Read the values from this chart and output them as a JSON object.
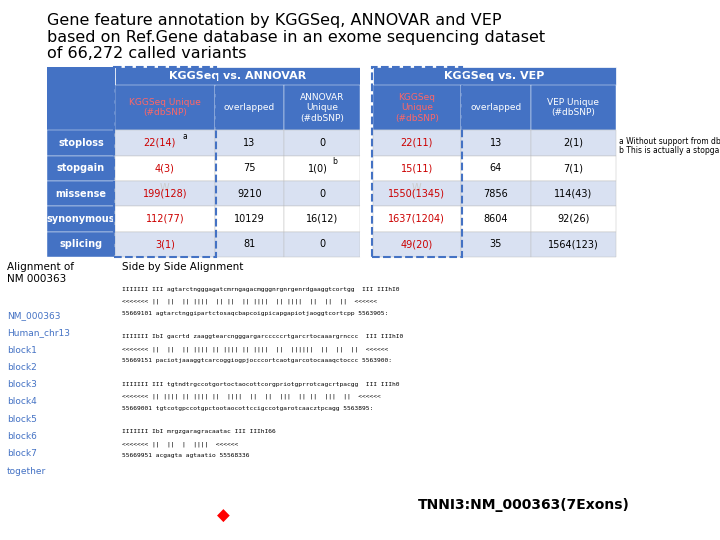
{
  "title_line1": "Gene feature annotation by KGGSeq, ANNOVAR and VEP",
  "title_line2": "based on Ref.Gene database in an exome sequencing dataset",
  "title_line3": "of 66,272 called variants",
  "title_fontsize": 11.5,
  "table": {
    "row_labels": [
      "stoploss",
      "stopgain",
      "missense",
      "synonymous",
      "splicing"
    ],
    "col_group1_header": "KGGSeq vs. ANNOVAR",
    "col_group2_header": "KGGSeq vs. VEP",
    "col_headers": [
      "KGGSeq Unique\n(#dbSNP)",
      "overlapped",
      "ANNOVAR\nUnique\n(#dbSNP)",
      "KGGSeq\nUnique\n(#dbSNP)",
      "overlapped",
      "VEP Unique\n(#dbSNP)"
    ],
    "data": [
      [
        "22(14)",
        "13",
        "0",
        "22(11)",
        "13",
        "2(1)"
      ],
      [
        "4(3)",
        "75",
        "1(0)",
        "15(11)",
        "64",
        "7(1)"
      ],
      [
        "199(128)",
        "9210",
        "0",
        "1550(1345)",
        "7856",
        "114(43)"
      ],
      [
        "112(77)",
        "10129",
        "16(12)",
        "1637(1204)",
        "8604",
        "92(26)"
      ],
      [
        "3(1)",
        "81",
        "0",
        "49(20)",
        "35",
        "1564(123)"
      ]
    ],
    "superscript_a_row": 0,
    "superscript_b_row": 1,
    "vv_row": 2,
    "header_bg": "#4472C4",
    "header_fg": "#FFFFFF",
    "cell_bg_even": "#D9E1F2",
    "cell_bg_odd": "#FFFFFF",
    "red_color": "#CC0000",
    "footnote_a": "a Without support from dbSNP",
    "footnote_b": "b This is actually a stopgain",
    "bottom_text": "TNNI3:NM_000363(7Exons)",
    "side_label1": "Side by Side Alignment",
    "align_label": "Alignment of\nNM 000363",
    "left_links": [
      "NM_000363",
      "Human_chr13",
      "block1",
      "block2",
      "block3",
      "block4",
      "block5",
      "block6",
      "block7",
      "together"
    ]
  }
}
